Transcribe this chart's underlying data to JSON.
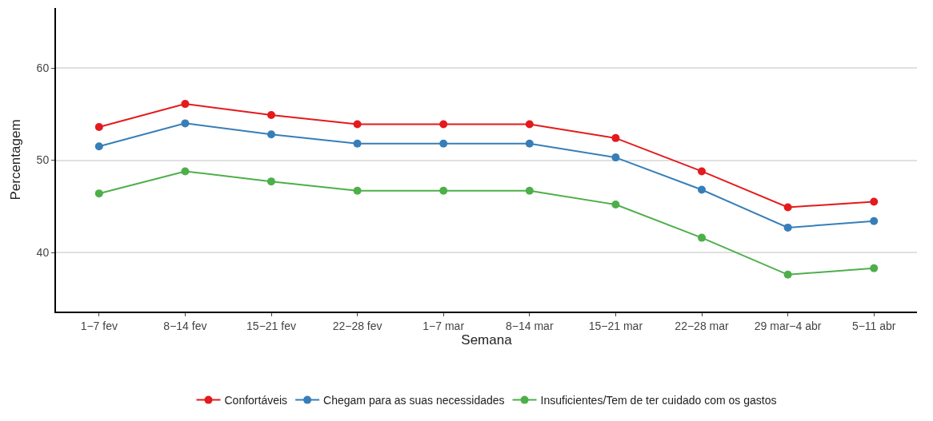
{
  "chart_data": {
    "type": "line",
    "xlabel": "Semana",
    "ylabel": "Percentagem",
    "categories": [
      "1−7 fev",
      "8−14 fev",
      "15−21 fev",
      "22−28 fev",
      "1−7 mar",
      "8−14 mar",
      "15−21 mar",
      "22−28 mar",
      "29 mar−4 abr",
      "5−11 abr"
    ],
    "series": [
      {
        "name": "Confortáveis",
        "color": "#e41a1c",
        "values": [
          53.6,
          56.1,
          54.9,
          53.9,
          53.9,
          53.9,
          52.4,
          48.8,
          44.9,
          45.5
        ]
      },
      {
        "name": "Chegam para as suas necessidades",
        "color": "#377eb8",
        "values": [
          51.5,
          54.0,
          52.8,
          51.8,
          51.8,
          51.8,
          50.3,
          46.8,
          42.7,
          43.4
        ]
      },
      {
        "name": "Insuficientes/Tem de ter cuidado com os gastos",
        "color": "#4daf4a",
        "values": [
          46.4,
          48.8,
          47.7,
          46.7,
          46.7,
          46.7,
          45.2,
          41.6,
          37.6,
          38.3
        ]
      }
    ],
    "ylim": [
      33.6,
      66.5
    ],
    "yticks": [
      40,
      50,
      60
    ],
    "grid": "y",
    "legend": "bottom",
    "marker": "circle",
    "line_style": "solid"
  }
}
